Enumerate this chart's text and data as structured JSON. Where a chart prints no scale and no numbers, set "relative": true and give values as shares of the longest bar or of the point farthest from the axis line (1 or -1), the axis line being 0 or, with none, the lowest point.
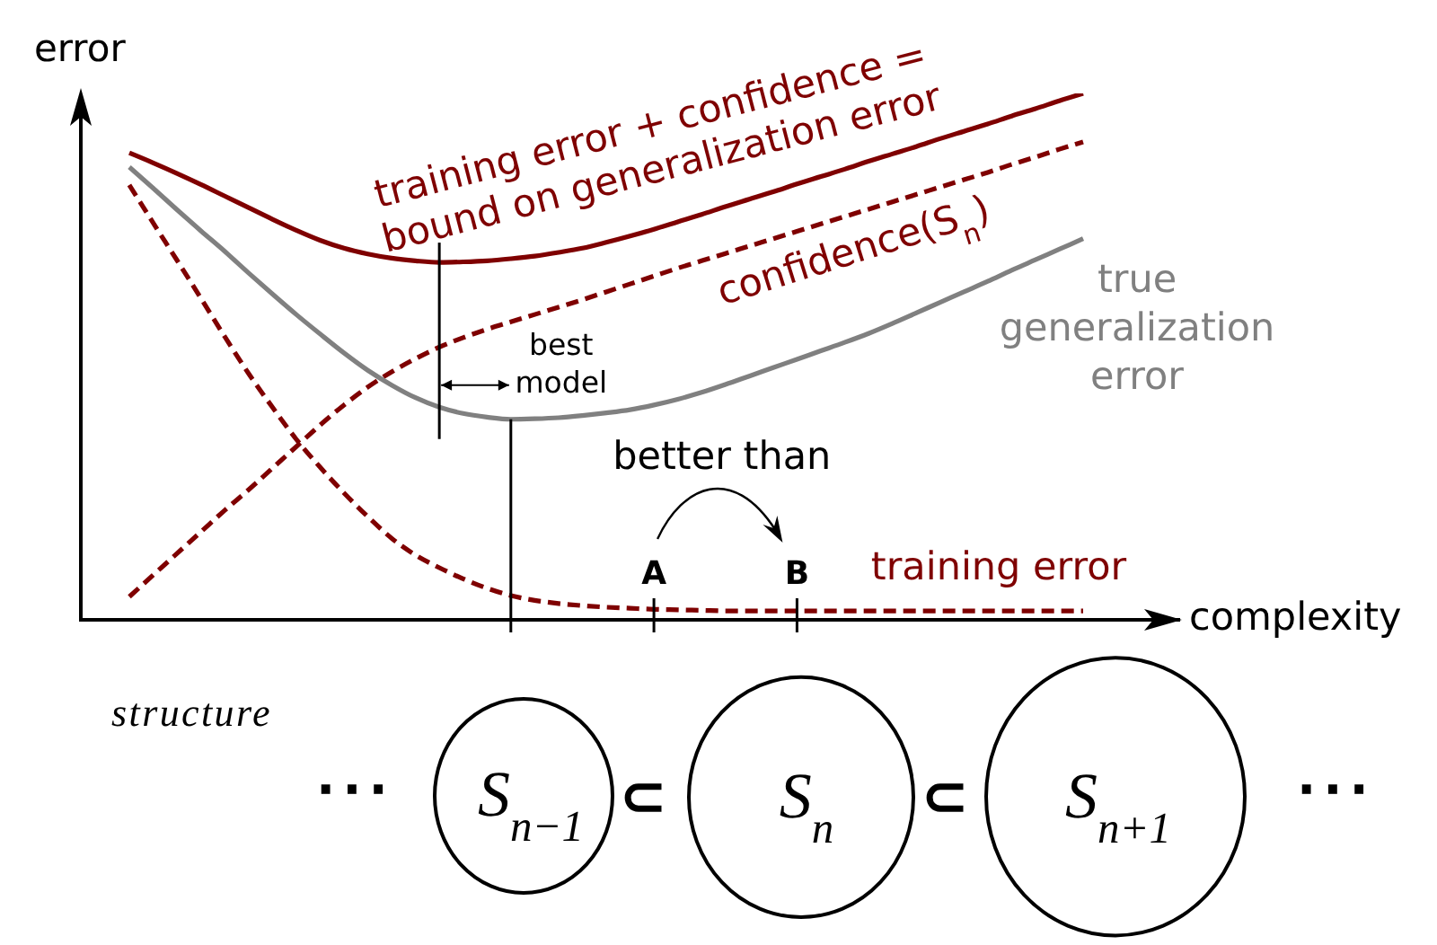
{
  "chart_data": {
    "type": "line",
    "relative": true,
    "xlabel": "complexity",
    "ylabel": "error",
    "tick_labels": "x",
    "categories": [
      null,
      null,
      null,
      null,
      null,
      null,
      null,
      null,
      null,
      null,
      null,
      null,
      null,
      null,
      null,
      null,
      null,
      null,
      null,
      null,
      null,
      null,
      "A",
      null,
      null,
      null,
      null,
      null,
      "B",
      null,
      null,
      null,
      null,
      null,
      null,
      null,
      null,
      null,
      null,
      null,
      null
    ],
    "series": [
      {
        "name": "training error + confidence = bound on generalization error",
        "color": "#7f0000",
        "line_style": "solid",
        "values": [
          0.887,
          0.868,
          0.848,
          0.827,
          0.805,
          0.783,
          0.761,
          0.74,
          0.721,
          0.706,
          0.695,
          0.687,
          0.682,
          0.679,
          0.68,
          0.682,
          0.686,
          0.691,
          0.698,
          0.706,
          0.717,
          0.729,
          0.742,
          0.756,
          0.77,
          0.785,
          0.799,
          0.813,
          0.828,
          0.842,
          0.856,
          0.871,
          0.885,
          0.899,
          0.914,
          0.928,
          0.942,
          0.957,
          0.971,
          0.986,
          1.0
        ]
      },
      {
        "name": "confidence(S$_{n}$)",
        "color": "#7f0000",
        "line_style": "dashed",
        "values": [
          0.044,
          0.085,
          0.126,
          0.167,
          0.208,
          0.247,
          0.288,
          0.329,
          0.37,
          0.408,
          0.442,
          0.471,
          0.496,
          0.518,
          0.536,
          0.552,
          0.566,
          0.58,
          0.594,
          0.608,
          0.623,
          0.638,
          0.653,
          0.668,
          0.682,
          0.696,
          0.71,
          0.724,
          0.738,
          0.752,
          0.766,
          0.78,
          0.794,
          0.808,
          0.822,
          0.836,
          0.85,
          0.865,
          0.879,
          0.894,
          0.908
        ]
      },
      {
        "name": "true generalization error",
        "color": "#808080",
        "line_style": "solid",
        "values": [
          0.86,
          0.82,
          0.779,
          0.739,
          0.7,
          0.659,
          0.619,
          0.58,
          0.543,
          0.507,
          0.474,
          0.446,
          0.422,
          0.404,
          0.392,
          0.385,
          0.381,
          0.382,
          0.384,
          0.388,
          0.393,
          0.399,
          0.408,
          0.419,
          0.432,
          0.447,
          0.463,
          0.479,
          0.495,
          0.511,
          0.527,
          0.544,
          0.563,
          0.583,
          0.603,
          0.623,
          0.643,
          0.664,
          0.684,
          0.704,
          0.724
        ]
      },
      {
        "name": "training error",
        "color": "#7f0000",
        "line_style": "dashed",
        "values": [
          0.826,
          0.754,
          0.683,
          0.611,
          0.538,
          0.468,
          0.404,
          0.343,
          0.29,
          0.241,
          0.196,
          0.155,
          0.123,
          0.099,
          0.078,
          0.06,
          0.046,
          0.037,
          0.031,
          0.027,
          0.024,
          0.022,
          0.02,
          0.019,
          0.018,
          0.017,
          0.017,
          0.017,
          0.017,
          0.017,
          0.017,
          0.017,
          0.017,
          0.017,
          0.017,
          0.017,
          0.017,
          0.017,
          0.017,
          0.017,
          0.017
        ]
      }
    ],
    "annotations": [
      "best model",
      "better than",
      "structure",
      "···",
      "S$_{n−1}$",
      "⊂",
      "S$_{n}$",
      "⊂",
      "S$_{n+1}$",
      "···"
    ]
  }
}
